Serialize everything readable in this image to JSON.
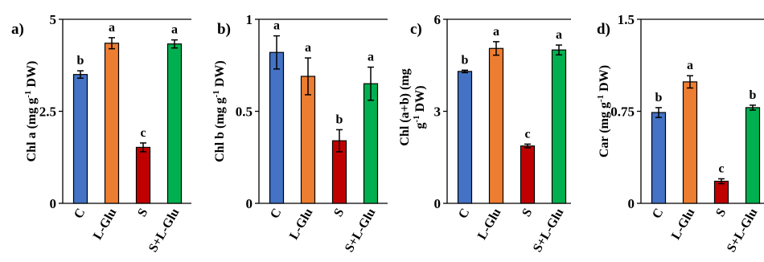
{
  "colors": {
    "C": "#4472c4",
    "L-Glu": "#ed7d31",
    "S": "#c00000",
    "S+L-Glu": "#00b050"
  },
  "chart_data": [
    {
      "type": "bar",
      "panel": "a)",
      "ylabel_main": "Chl a (mg g",
      "ylabel_sup": "-1",
      "ylabel_end": " DW)",
      "categories": [
        "C",
        "L-Glu",
        "S",
        "S+L-Glu"
      ],
      "values": [
        3.5,
        4.35,
        1.52,
        4.33
      ],
      "errors": [
        0.1,
        0.15,
        0.12,
        0.11
      ],
      "significance": [
        "b",
        "a",
        "c",
        "a"
      ],
      "ylim": [
        0,
        5
      ],
      "yticks": [
        0,
        2.5,
        5
      ],
      "ytick_labels": [
        "0",
        "2.5",
        "5"
      ]
    },
    {
      "type": "bar",
      "panel": "b)",
      "ylabel_main": "Chl b (mg g",
      "ylabel_sup": "-1",
      "ylabel_end": " DW)",
      "categories": [
        "C",
        "L-Glu",
        "S",
        "S+L-Glu"
      ],
      "values": [
        0.82,
        0.69,
        0.34,
        0.65
      ],
      "errors": [
        0.09,
        0.1,
        0.06,
        0.09
      ],
      "significance": [
        "a",
        "a",
        "b",
        "a"
      ],
      "ylim": [
        0,
        1
      ],
      "yticks": [
        0,
        0.5,
        1
      ],
      "ytick_labels": [
        "0",
        "0.5",
        "1"
      ]
    },
    {
      "type": "bar",
      "panel": "c)",
      "ylabel_main": "Chl (a+b) (mg",
      "ylabel_line2_main": "g",
      "ylabel_sup": "-1",
      "ylabel_end": " DW)",
      "categories": [
        "C",
        "L-Glu",
        "S",
        "S+L-Glu"
      ],
      "values": [
        4.3,
        5.05,
        1.87,
        5.0
      ],
      "errors": [
        0.04,
        0.22,
        0.06,
        0.16
      ],
      "significance": [
        "b",
        "a",
        "c",
        "a"
      ],
      "ylim": [
        0,
        6
      ],
      "yticks": [
        0,
        3,
        6
      ],
      "ytick_labels": [
        "0",
        "3",
        "6"
      ]
    },
    {
      "type": "bar",
      "panel": "d)",
      "ylabel_main": "Car (mg g",
      "ylabel_sup": "-1",
      "ylabel_end": " DW)",
      "categories": [
        "C",
        "L-Glu",
        "S",
        "S+L-Glu"
      ],
      "values": [
        0.74,
        0.99,
        0.18,
        0.78
      ],
      "errors": [
        0.04,
        0.05,
        0.02,
        0.02
      ],
      "significance": [
        "b",
        "a",
        "c",
        "b"
      ],
      "ylim": [
        0,
        1.5
      ],
      "yticks": [
        0,
        0.75,
        1.5
      ],
      "ytick_labels": [
        "0",
        "0.75",
        "1.5"
      ]
    }
  ]
}
